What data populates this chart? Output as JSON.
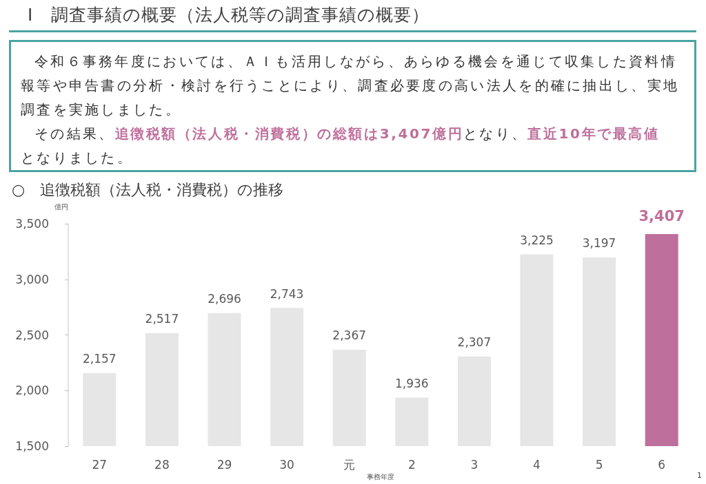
{
  "chart_data": {
    "type": "bar",
    "title": "○　追徴税額（法人税・消費税）の推移",
    "ylabel": "億円",
    "xlabel": "事務年度",
    "annotations": [
      "Ⅰ　調査事績の概要（法人税等の調査事績の概要）",
      "令和６事務年度においては、ＡＩも活用しながら、あらゆる機会を通じて収集した資料情報等や申告書の分析・検討を行うことにより、調査必要度の高い法人を的確に抽出し、実地調査を実施しました。",
      "その結果、",
      "追徴税額（法人税・消費税）の総額は3,407億円",
      "となり、",
      "直近10年で最高値",
      "となりました。",
      "1"
    ],
    "categories": [
      "27",
      "28",
      "29",
      "30",
      "元",
      "2",
      "3",
      "4",
      "5",
      "6"
    ],
    "values": [
      2157,
      2517,
      2696,
      2743,
      2367,
      1936,
      2307,
      3225,
      3197,
      3407
    ],
    "value_labels": [
      "2,157",
      "2,517",
      "2,696",
      "2,743",
      "2,367",
      "1,936",
      "2,307",
      "3,225",
      "3,197",
      "3,407"
    ],
    "colors": [
      "#e6e6e6",
      "#e6e6e6",
      "#e6e6e6",
      "#e6e6e6",
      "#e6e6e6",
      "#e6e6e6",
      "#e6e6e6",
      "#e6e6e6",
      "#e6e6e6",
      "#bf6f9b"
    ],
    "ylim": [
      1500,
      3500
    ],
    "yticks": [
      {
        "value": 1500,
        "label": "1,500"
      },
      {
        "value": 2000,
        "label": "2,000"
      },
      {
        "value": 2500,
        "label": "2,500"
      },
      {
        "value": 3000,
        "label": "3,000"
      },
      {
        "value": 3500,
        "label": "3,500"
      }
    ],
    "grid": false
  }
}
